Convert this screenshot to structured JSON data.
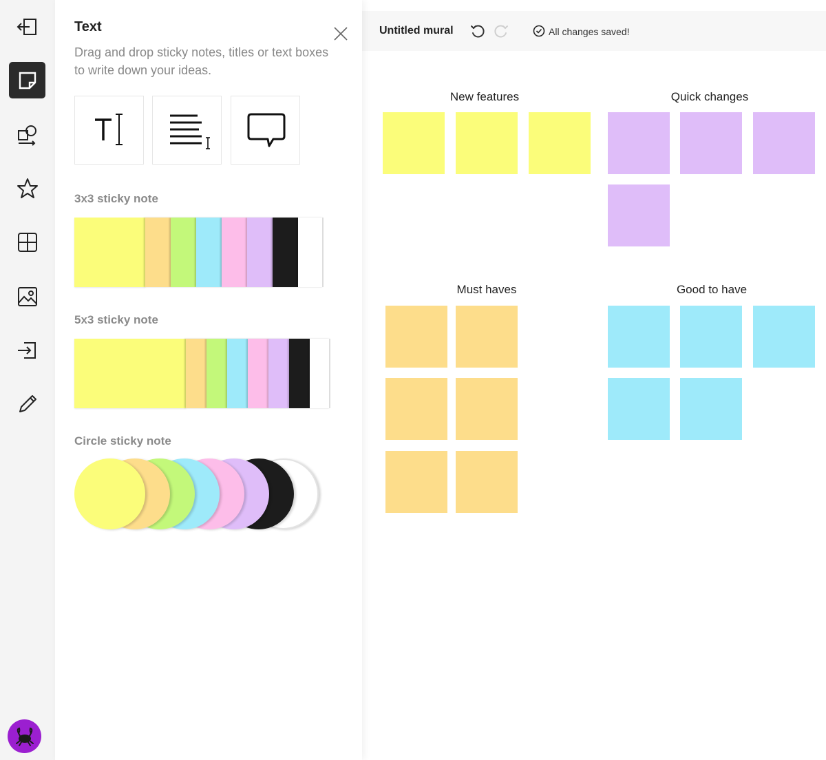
{
  "colors": {
    "yellow": "#fbfd7a",
    "orange": "#fddd8b",
    "green": "#c3f87a",
    "blue": "#9eeafa",
    "pink": "#fdbde9",
    "purple": "#dfbdf9",
    "black": "#1c1c1c",
    "white": "#ffffff"
  },
  "rail": {
    "items": [
      {
        "name": "exit-icon"
      },
      {
        "name": "sticky-note-icon",
        "active": true
      },
      {
        "name": "shapes-icon"
      },
      {
        "name": "star-icon"
      },
      {
        "name": "grid-icon"
      },
      {
        "name": "image-icon"
      },
      {
        "name": "import-icon"
      },
      {
        "name": "pencil-icon"
      }
    ],
    "avatar_icon": "crab-icon"
  },
  "panel": {
    "title": "Text",
    "description": "Drag and drop sticky notes, titles or text boxes to write down your ideas.",
    "tools": [
      "title-text-icon",
      "text-box-icon",
      "comment-bubble-icon"
    ],
    "sections": {
      "sticky3x3": "3x3 sticky note",
      "sticky5x3": "5x3 sticky note",
      "circle": "Circle sticky note"
    }
  },
  "header": {
    "mural_title": "Untitled mural",
    "save_status": "All changes saved!"
  },
  "groups": [
    {
      "title": "New features",
      "color": "#fbfd7a",
      "count": 3
    },
    {
      "title": "Quick changes",
      "color": "#dfbdf9",
      "count": 4
    },
    {
      "title": "Must haves",
      "color": "#fddd8b",
      "count": 6
    },
    {
      "title": "Good to have",
      "color": "#9eeafa",
      "count": 5
    }
  ]
}
